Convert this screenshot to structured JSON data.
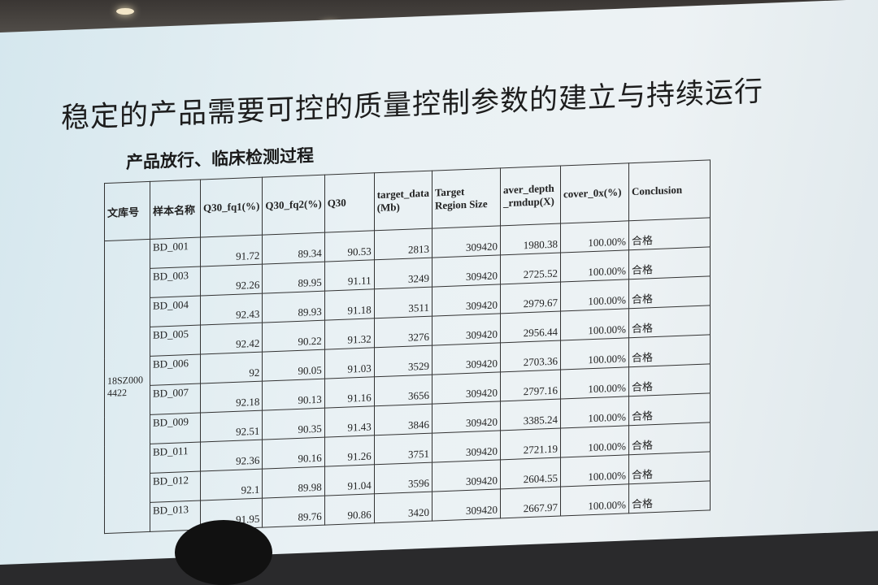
{
  "slide": {
    "title": "稳定的产品需要可控的质量控制参数的建立与持续运行",
    "subtitle": "产品放行、临床检测过程"
  },
  "table": {
    "headers": [
      "文库号",
      "样本名称",
      "Q30_fq1(%)",
      "Q30_fq2(%)",
      "Q30",
      "target_data (Mb)",
      "Target Region Size",
      "aver_depth _rmdup(X)",
      "cover_0x(%)",
      "Conclusion"
    ],
    "library_id": "18SZ0004422",
    "rows": [
      [
        "BD_001",
        "91.72",
        "89.34",
        "90.53",
        "2813",
        "309420",
        "1980.38",
        "100.00%",
        "合格"
      ],
      [
        "BD_003",
        "92.26",
        "89.95",
        "91.11",
        "3249",
        "309420",
        "2725.52",
        "100.00%",
        "合格"
      ],
      [
        "BD_004",
        "92.43",
        "89.93",
        "91.18",
        "3511",
        "309420",
        "2979.67",
        "100.00%",
        "合格"
      ],
      [
        "BD_005",
        "92.42",
        "90.22",
        "91.32",
        "3276",
        "309420",
        "2956.44",
        "100.00%",
        "合格"
      ],
      [
        "BD_006",
        "92",
        "90.05",
        "91.03",
        "3529",
        "309420",
        "2703.36",
        "100.00%",
        "合格"
      ],
      [
        "BD_007",
        "92.18",
        "90.13",
        "91.16",
        "3656",
        "309420",
        "2797.16",
        "100.00%",
        "合格"
      ],
      [
        "BD_009",
        "92.51",
        "90.35",
        "91.43",
        "3846",
        "309420",
        "3385.24",
        "100.00%",
        "合格"
      ],
      [
        "BD_011",
        "92.36",
        "90.16",
        "91.26",
        "3751",
        "309420",
        "2721.19",
        "100.00%",
        "合格"
      ],
      [
        "BD_012",
        "92.1",
        "89.98",
        "91.04",
        "3596",
        "309420",
        "2604.55",
        "100.00%",
        "合格"
      ],
      [
        "BD_013",
        "91.95",
        "89.76",
        "90.86",
        "3420",
        "309420",
        "2667.97",
        "100.00%",
        "合格"
      ]
    ]
  }
}
